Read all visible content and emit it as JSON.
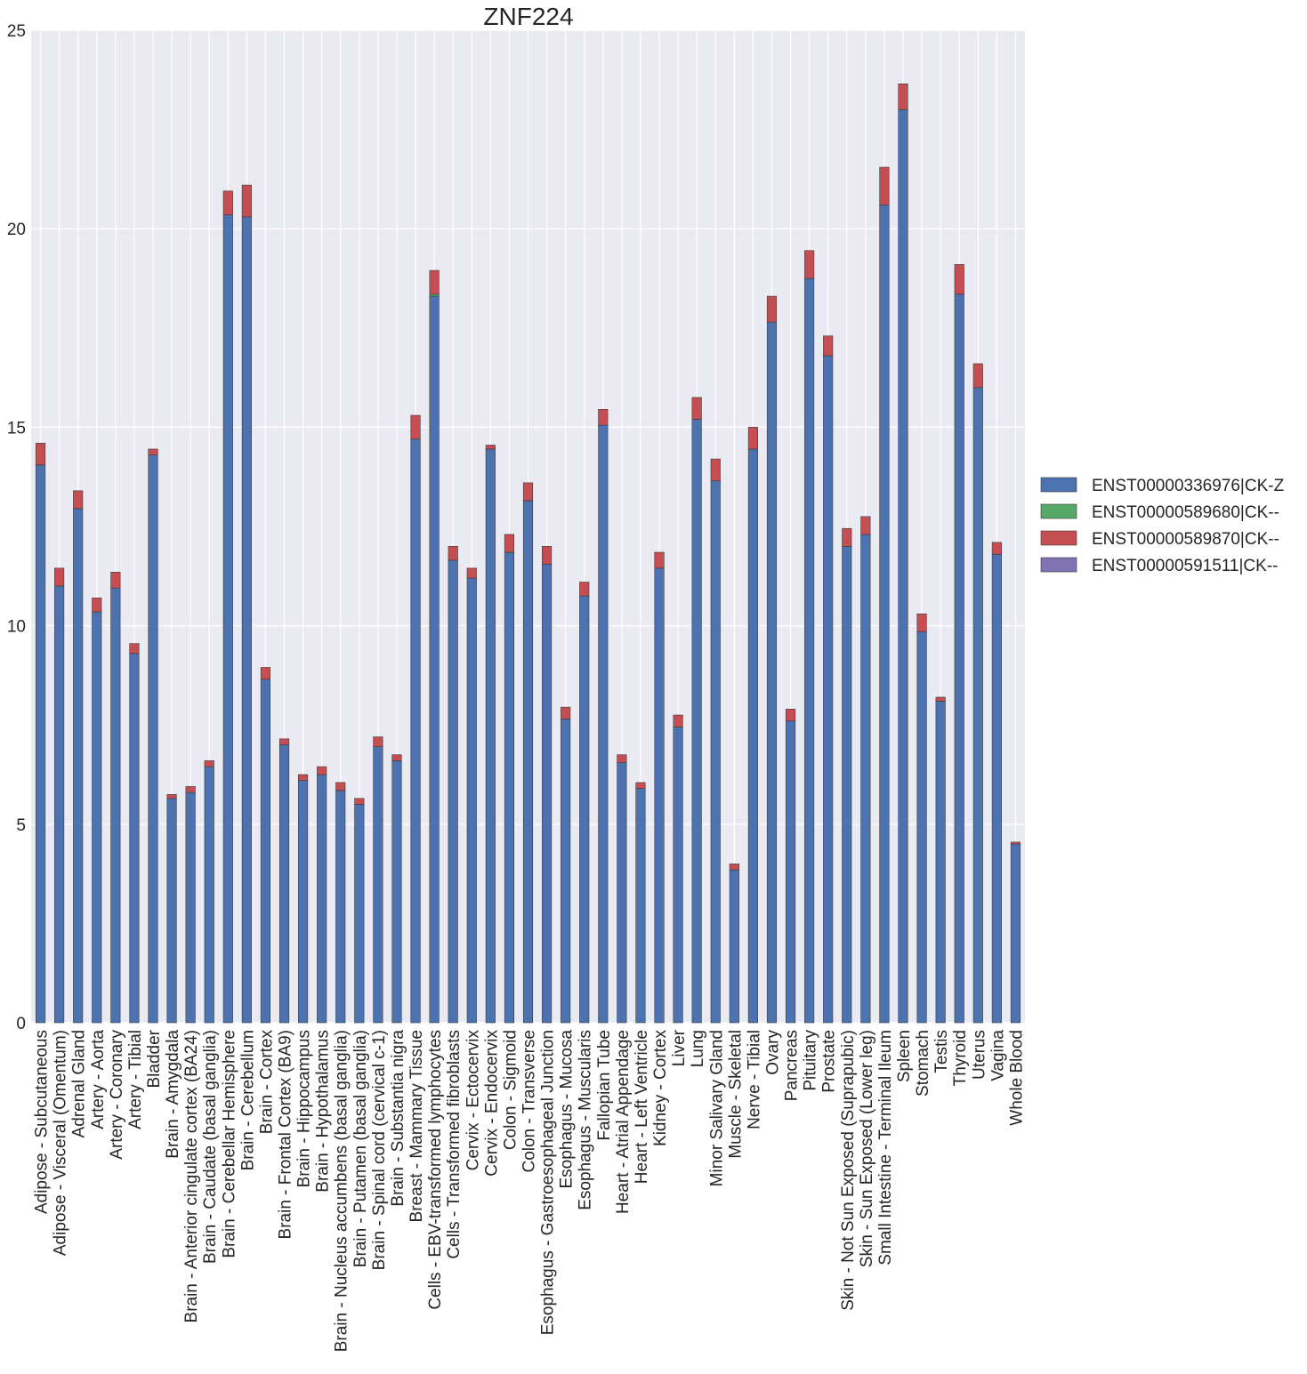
{
  "chart_data": {
    "type": "bar",
    "stacked": true,
    "title": "ZNF224",
    "xlabel": "",
    "ylabel": "",
    "ylim": [
      0,
      25
    ],
    "yticks": [
      0,
      5,
      10,
      15,
      20,
      25
    ],
    "grid": true,
    "legend_position": "right",
    "categories": [
      "Adipose - Subcutaneous",
      "Adipose - Visceral (Omentum)",
      "Adrenal Gland",
      "Artery - Aorta",
      "Artery - Coronary",
      "Artery - Tibial",
      "Bladder",
      "Brain - Amygdala",
      "Brain - Anterior cingulate cortex (BA24)",
      "Brain - Caudate (basal ganglia)",
      "Brain - Cerebellar Hemisphere",
      "Brain - Cerebellum",
      "Brain - Cortex",
      "Brain - Frontal Cortex (BA9)",
      "Brain - Hippocampus",
      "Brain - Hypothalamus",
      "Brain - Nucleus accumbens (basal ganglia)",
      "Brain - Putamen (basal ganglia)",
      "Brain - Spinal cord (cervical c-1)",
      "Brain - Substantia nigra",
      "Breast - Mammary Tissue",
      "Cells - EBV-transformed lymphocytes",
      "Cells - Transformed fibroblasts",
      "Cervix - Ectocervix",
      "Cervix - Endocervix",
      "Colon - Sigmoid",
      "Colon - Transverse",
      "Esophagus - Gastroesophageal Junction",
      "Esophagus - Mucosa",
      "Esophagus - Muscularis",
      "Fallopian Tube",
      "Heart - Atrial Appendage",
      "Heart - Left Ventricle",
      "Kidney - Cortex",
      "Liver",
      "Lung",
      "Minor Salivary Gland",
      "Muscle - Skeletal",
      "Nerve - Tibial",
      "Ovary",
      "Pancreas",
      "Pituitary",
      "Prostate",
      "Skin - Not Sun Exposed (Suprapubic)",
      "Skin - Sun Exposed (Lower leg)",
      "Small Intestine - Terminal Ileum",
      "Spleen",
      "Stomach",
      "Testis",
      "Thyroid",
      "Uterus",
      "Vagina",
      "Whole Blood"
    ],
    "series": [
      {
        "name": "ENST00000336976|CK-Z",
        "color": "#4c72b0",
        "values": [
          14.05,
          11.0,
          12.95,
          10.35,
          10.95,
          9.3,
          14.3,
          5.65,
          5.8,
          6.45,
          20.35,
          20.3,
          8.65,
          7.0,
          6.1,
          6.25,
          5.85,
          5.5,
          6.95,
          6.6,
          14.7,
          18.3,
          11.65,
          11.2,
          14.45,
          11.85,
          13.15,
          11.55,
          7.65,
          10.75,
          15.05,
          6.55,
          5.9,
          11.45,
          7.45,
          15.2,
          13.65,
          3.85,
          14.45,
          17.65,
          7.6,
          18.75,
          16.8,
          12.0,
          12.3,
          20.6,
          23.0,
          9.85,
          8.1,
          18.35,
          16.0,
          11.8,
          4.5
        ]
      },
      {
        "name": "ENST00000589680|CK--",
        "color": "#55a868",
        "values": [
          0,
          0,
          0,
          0,
          0,
          0,
          0,
          0,
          0,
          0,
          0,
          0,
          0,
          0,
          0,
          0,
          0,
          0,
          0,
          0,
          0,
          0.05,
          0,
          0,
          0,
          0,
          0,
          0,
          0,
          0,
          0,
          0,
          0,
          0,
          0,
          0,
          0,
          0,
          0,
          0,
          0,
          0,
          0,
          0,
          0,
          0,
          0,
          0,
          0,
          0,
          0,
          0,
          0
        ]
      },
      {
        "name": "ENST00000589870|CK--",
        "color": "#c44e52",
        "values": [
          0.55,
          0.45,
          0.45,
          0.35,
          0.4,
          0.25,
          0.15,
          0.1,
          0.15,
          0.15,
          0.6,
          0.8,
          0.3,
          0.15,
          0.15,
          0.2,
          0.2,
          0.15,
          0.25,
          0.15,
          0.6,
          0.6,
          0.35,
          0.25,
          0.1,
          0.45,
          0.45,
          0.45,
          0.3,
          0.35,
          0.4,
          0.2,
          0.15,
          0.4,
          0.3,
          0.55,
          0.55,
          0.15,
          0.55,
          0.65,
          0.3,
          0.7,
          0.5,
          0.45,
          0.45,
          0.95,
          0.65,
          0.45,
          0.1,
          0.75,
          0.6,
          0.3,
          0.05
        ]
      },
      {
        "name": "ENST00000591511|CK--",
        "color": "#8172b2",
        "values": [
          0,
          0,
          0,
          0,
          0,
          0,
          0,
          0,
          0,
          0,
          0,
          0,
          0,
          0,
          0,
          0,
          0,
          0,
          0,
          0,
          0,
          0,
          0,
          0,
          0,
          0,
          0,
          0,
          0,
          0,
          0,
          0,
          0,
          0,
          0,
          0,
          0,
          0,
          0,
          0,
          0,
          0,
          0,
          0,
          0,
          0,
          0,
          0,
          0,
          0,
          0,
          0,
          0
        ]
      }
    ]
  }
}
